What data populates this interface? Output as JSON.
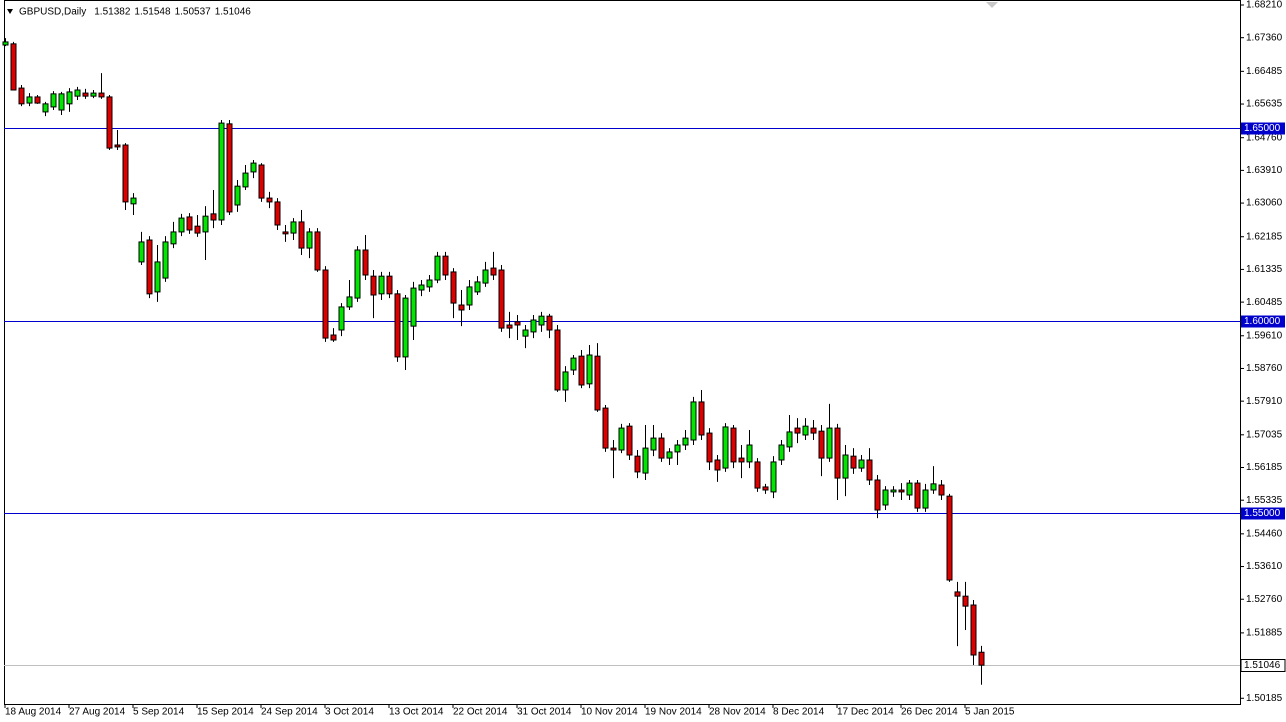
{
  "chart_data": {
    "type": "candlestick",
    "title": "GBPUSD,Daily",
    "up_color": "#00e600",
    "down_color": "#dd0000",
    "hline_color": "#0000cc",
    "last_price_line_color": "#c0c0c0",
    "ylim": [
      1.50036,
      1.6834
    ],
    "yticks": [
      {
        "value": 1.6821,
        "label": "1.68210"
      },
      {
        "value": 1.6736,
        "label": "1.67360"
      },
      1.66485,
      1.65635,
      {
        "value": 1.6476,
        "label": "1.64760"
      },
      {
        "value": 1.6391,
        "label": "1.63910"
      },
      {
        "value": 1.6306,
        "label": "1.63060"
      },
      1.62185,
      1.61335,
      1.60485,
      {
        "value": 1.5961,
        "label": "1.59610"
      },
      {
        "value": 1.5876,
        "label": "1.58760"
      },
      {
        "value": 1.5791,
        "label": "1.57910"
      },
      1.57035,
      1.56185,
      1.55335,
      {
        "value": 1.5446,
        "label": "1.54460"
      },
      {
        "value": 1.5361,
        "label": "1.53610"
      },
      {
        "value": 1.5276,
        "label": "1.52760"
      },
      1.51885,
      1.50185
    ],
    "hlines": [
      {
        "value": 1.65,
        "label": "1.65000"
      },
      {
        "value": 1.6,
        "label": "1.60000"
      },
      {
        "value": 1.55,
        "label": "1.55000"
      }
    ],
    "categories": [
      "18 Aug 2014",
      null,
      null,
      null,
      null,
      null,
      null,
      null,
      "27 Aug 2014",
      null,
      null,
      null,
      null,
      null,
      null,
      null,
      "5 Sep 2014",
      null,
      null,
      null,
      null,
      null,
      null,
      null,
      "15 Sep 2014",
      null,
      null,
      null,
      null,
      null,
      null,
      null,
      "24 Sep 2014",
      null,
      null,
      null,
      null,
      null,
      null,
      null,
      "3 Oct 2014",
      null,
      null,
      null,
      null,
      null,
      null,
      null,
      "13 Oct 2014",
      null,
      null,
      null,
      null,
      null,
      null,
      null,
      "22 Oct 2014",
      null,
      null,
      null,
      null,
      null,
      null,
      null,
      "31 Oct 2014",
      null,
      null,
      null,
      null,
      null,
      null,
      null,
      "10 Nov 2014",
      null,
      null,
      null,
      null,
      null,
      null,
      null,
      "19 Nov 2014",
      null,
      null,
      null,
      null,
      null,
      null,
      null,
      "28 Nov 2014",
      null,
      null,
      null,
      null,
      null,
      null,
      null,
      "8 Dec 2014",
      null,
      null,
      null,
      null,
      null,
      null,
      null,
      "17 Dec 2014",
      null,
      null,
      null,
      null,
      null,
      null,
      null,
      "26 Dec 2014",
      null,
      null,
      null,
      null,
      null,
      null,
      null,
      "5 Jan 2015",
      null,
      null
    ],
    "open": [
      1.6717,
      1.672,
      1.6605,
      1.6566,
      1.6582,
      1.6543,
      1.6556,
      1.6548,
      1.6564,
      1.6584,
      1.6592,
      1.6584,
      1.6592,
      1.6582,
      1.6457,
      1.6457,
      1.6304,
      1.6153,
      1.621,
      1.6075,
      1.6111,
      1.62,
      1.6231,
      1.627,
      1.6246,
      1.6231,
      1.6278,
      1.6262,
      1.6512,
      1.6301,
      1.6348,
      1.6387,
      1.6405,
      1.6319,
      1.6309,
      1.6231,
      1.6228,
      1.6257,
      1.6189,
      1.6231,
      1.6132,
      1.5963,
      1.5976,
      1.6036,
      1.6059,
      1.6184,
      1.6116,
      1.607,
      1.6116,
      1.607,
      1.5906,
      1.5986,
      1.608,
      1.6088,
      1.6106,
      1.6168,
      1.6127,
      1.6041,
      1.6041,
      1.6075,
      1.6098,
      1.6137,
      1.6132,
      1.5989,
      1.5997,
      1.596,
      1.5971,
      1.5989,
      1.6012,
      1.5976,
      1.582,
      1.5872,
      1.5908,
      1.5836,
      1.5908,
      1.5773,
      1.5669,
      1.5664,
      1.5726,
      1.5648,
      1.5604,
      1.5664,
      1.5695,
      1.5643,
      1.5659,
      1.5677,
      1.569,
      1.5789,
      1.5708,
      1.5638,
      1.5617,
      1.5721,
      1.5643,
      1.5633,
      1.5633,
      1.5568,
      1.5555,
      1.5638,
      1.5672,
      1.5721,
      1.5703,
      1.5721,
      1.5713,
      1.5643,
      1.5721,
      1.5591,
      1.5648,
      1.5617,
      1.5638,
      1.5586,
      1.5521,
      1.5555,
      1.556,
      1.5547,
      1.5578,
      1.5513,
      1.556,
      1.5573,
      1.5544,
      1.5295,
      1.5284,
      1.5261,
      1.51382
    ],
    "high": [
      1.6735,
      1.6725,
      1.6613,
      1.6592,
      1.6587,
      1.6569,
      1.6597,
      1.6595,
      1.6605,
      1.6608,
      1.6603,
      1.66,
      1.6644,
      1.6587,
      1.6496,
      1.6462,
      1.6332,
      1.6231,
      1.622,
      1.6197,
      1.622,
      1.6257,
      1.6278,
      1.628,
      1.6275,
      1.6298,
      1.634,
      1.6522,
      1.6522,
      1.6366,
      1.6405,
      1.6418,
      1.641,
      1.6335,
      1.6319,
      1.6249,
      1.6267,
      1.6288,
      1.6241,
      1.6241,
      1.6142,
      1.5981,
      1.6046,
      1.6106,
      1.6194,
      1.6223,
      1.6132,
      1.6127,
      1.6127,
      1.608,
      1.6067,
      1.6101,
      1.6106,
      1.6119,
      1.6179,
      1.6179,
      1.6137,
      1.608,
      1.6106,
      1.6116,
      1.6153,
      1.6179,
      1.6145,
      1.6023,
      1.6015,
      1.5989,
      1.6015,
      1.6023,
      1.6018,
      1.5989,
      1.5882,
      1.5911,
      1.5924,
      1.5937,
      1.5942,
      1.5781,
      1.569,
      1.5732,
      1.5734,
      1.5664,
      1.5729,
      1.5729,
      1.5708,
      1.5669,
      1.569,
      1.5716,
      1.5802,
      1.582,
      1.5721,
      1.5651,
      1.5734,
      1.5729,
      1.5677,
      1.5716,
      1.5643,
      1.5576,
      1.5648,
      1.569,
      1.5755,
      1.5747,
      1.5747,
      1.5742,
      1.5729,
      1.5784,
      1.5732,
      1.5677,
      1.5669,
      1.5651,
      1.5669,
      1.5599,
      1.557,
      1.557,
      1.5578,
      1.5586,
      1.5586,
      1.5576,
      1.5622,
      1.5586,
      1.555,
      1.5321,
      1.5321,
      1.5274,
      1.51548
    ],
    "low": [
      1.6714,
      1.66,
      1.6558,
      1.6558,
      1.6564,
      1.6532,
      1.6548,
      1.6535,
      1.6543,
      1.6574,
      1.6577,
      1.6579,
      1.6577,
      1.6444,
      1.6444,
      1.6288,
      1.6275,
      1.6145,
      1.6059,
      1.6049,
      1.6101,
      1.6189,
      1.622,
      1.6226,
      1.6218,
      1.6158,
      1.6241,
      1.6249,
      1.6275,
      1.6283,
      1.634,
      1.6371,
      1.6309,
      1.6293,
      1.6236,
      1.6205,
      1.621,
      1.6171,
      1.6163,
      1.6127,
      1.5945,
      1.5945,
      1.596,
      1.6028,
      1.6049,
      1.6106,
      1.6007,
      1.6054,
      1.6059,
      1.5893,
      1.5872,
      1.595,
      1.6064,
      1.6075,
      1.6098,
      1.6106,
      1.6007,
      1.5986,
      1.6028,
      1.6067,
      1.6088,
      1.6106,
      1.5971,
      1.5955,
      1.595,
      1.5929,
      1.5955,
      1.5971,
      1.5955,
      1.5815,
      1.5789,
      1.5859,
      1.5825,
      1.5825,
      1.5763,
      1.5659,
      1.5591,
      1.5656,
      1.5638,
      1.5591,
      1.5586,
      1.5648,
      1.5633,
      1.5625,
      1.5625,
      1.5664,
      1.5677,
      1.569,
      1.5612,
      1.5581,
      1.5607,
      1.5617,
      1.5591,
      1.5617,
      1.5555,
      1.555,
      1.5539,
      1.5625,
      1.5659,
      1.5682,
      1.569,
      1.569,
      1.5596,
      1.5633,
      1.5534,
      1.5544,
      1.5602,
      1.5607,
      1.5573,
      1.5487,
      1.5508,
      1.5542,
      1.5534,
      1.5534,
      1.5503,
      1.5503,
      1.555,
      1.5534,
      1.5321,
      1.5154,
      1.5196,
      1.5105,
      1.50537
    ],
    "close": [
      1.6725,
      1.66,
      1.6564,
      1.6582,
      1.6566,
      1.6564,
      1.659,
      1.659,
      1.6595,
      1.66,
      1.6584,
      1.6592,
      1.6582,
      1.6449,
      1.6452,
      1.6309,
      1.6319,
      1.6205,
      1.607,
      1.6153,
      1.6205,
      1.6231,
      1.6267,
      1.6236,
      1.6228,
      1.6272,
      1.6262,
      1.6514,
      1.6283,
      1.635,
      1.6384,
      1.641,
      1.6319,
      1.6309,
      1.6249,
      1.6226,
      1.6257,
      1.6189,
      1.6231,
      1.6132,
      1.5955,
      1.595,
      1.6036,
      1.6062,
      1.6184,
      1.6119,
      1.6067,
      1.6116,
      1.607,
      1.5906,
      1.6059,
      1.6085,
      1.6093,
      1.6106,
      1.6168,
      1.6119,
      1.6046,
      1.6028,
      1.6088,
      1.6101,
      1.6132,
      1.6119,
      1.5981,
      1.5981,
      1.5989,
      1.5976,
      1.6002,
      1.6012,
      1.5976,
      1.582,
      1.5867,
      1.5903,
      1.5833,
      1.5911,
      1.5768,
      1.5669,
      1.5664,
      1.5721,
      1.5651,
      1.5607,
      1.5669,
      1.5695,
      1.5643,
      1.5659,
      1.5677,
      1.5695,
      1.5789,
      1.5703,
      1.5633,
      1.5612,
      1.5724,
      1.5633,
      1.5633,
      1.5677,
      1.5565,
      1.556,
      1.5633,
      1.5677,
      1.5711,
      1.5708,
      1.5726,
      1.5708,
      1.5643,
      1.5721,
      1.5591,
      1.5651,
      1.5617,
      1.5638,
      1.5586,
      1.5508,
      1.556,
      1.556,
      1.5555,
      1.5578,
      1.5513,
      1.556,
      1.5576,
      1.5547,
      1.5326,
      1.5284,
      1.5258,
      1.5131,
      1.51046
    ]
  }
}
